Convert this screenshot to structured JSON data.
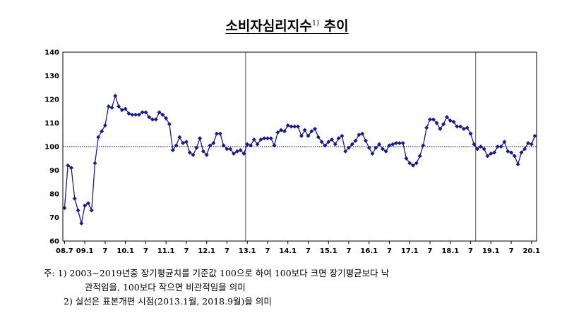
{
  "title": {
    "main": "소비자심리지수",
    "sup": "1)",
    "suffix": " 추이"
  },
  "chart_data": {
    "type": "line",
    "title": "소비자심리지수1) 추이",
    "xlabel": "",
    "ylabel": "",
    "ylim": [
      60,
      140
    ],
    "yticks": [
      60,
      70,
      80,
      90,
      100,
      110,
      120,
      130,
      140
    ],
    "reference_line": 100,
    "x_start": "2008.7",
    "series_color": "#1a1a8c",
    "x_tick_labels": [
      {
        "label": "08.7",
        "month": "2008.7"
      },
      {
        "label": "09.1",
        "month": "2009.1"
      },
      {
        "label": "7",
        "month": "2009.7"
      },
      {
        "label": "10.1",
        "month": "2010.1"
      },
      {
        "label": "7",
        "month": "2010.7"
      },
      {
        "label": "11.1",
        "month": "2011.1"
      },
      {
        "label": "7",
        "month": "2011.7"
      },
      {
        "label": "12.1",
        "month": "2012.1"
      },
      {
        "label": "7",
        "month": "2012.7"
      },
      {
        "label": "13.1",
        "month": "2013.1"
      },
      {
        "label": "7",
        "month": "2013.7"
      },
      {
        "label": "14.1",
        "month": "2014.1"
      },
      {
        "label": "7",
        "month": "2014.7"
      },
      {
        "label": "15.1",
        "month": "2015.1"
      },
      {
        "label": "7",
        "month": "2015.7"
      },
      {
        "label": "16.1",
        "month": "2016.1"
      },
      {
        "label": "7",
        "month": "2016.7"
      },
      {
        "label": "17.1",
        "month": "2017.1"
      },
      {
        "label": "7",
        "month": "2017.7"
      },
      {
        "label": "18.1",
        "month": "2018.1"
      },
      {
        "label": "7",
        "month": "2018.7"
      },
      {
        "label": "19.1",
        "month": "2019.1"
      },
      {
        "label": "7",
        "month": "2019.7"
      },
      {
        "label": "20.1",
        "month": "2020.1"
      }
    ],
    "breaks": [
      "2013.1",
      "2018.9"
    ],
    "values": [
      74,
      92,
      91,
      78,
      73,
      67.5,
      75,
      76,
      73,
      93,
      104,
      106.5,
      109,
      117,
      116.5,
      121.5,
      117,
      115.5,
      116,
      114,
      113.5,
      113.5,
      113.5,
      114.5,
      114.5,
      112.5,
      111.5,
      111.5,
      114.5,
      113.5,
      112,
      109.5,
      98.5,
      100.5,
      104,
      101.5,
      102,
      97.5,
      96.5,
      99.5,
      103.5,
      98,
      96.5,
      100.5,
      101.5,
      105.5,
      105.5,
      100.5,
      99,
      99,
      97,
      98,
      98.5,
      97,
      101,
      100.5,
      103,
      101,
      103,
      103.5,
      103.5,
      103.5,
      100.5,
      106,
      107,
      106.5,
      109,
      108.5,
      108.5,
      108.5,
      104.5,
      107,
      104.5,
      106.5,
      107.5,
      104,
      102,
      100.5,
      102,
      103,
      101,
      103.5,
      104.5,
      98,
      99.5,
      101,
      102.5,
      105,
      105.5,
      102.5,
      99.5,
      97,
      99.5,
      101,
      99,
      98,
      100.5,
      101,
      101.5,
      101.5,
      101.5,
      95,
      93,
      92,
      93,
      96,
      100.5,
      108,
      111.5,
      111.5,
      110,
      107.5,
      109.5,
      112.5,
      111,
      110.5,
      108.5,
      108.5,
      107.5,
      108,
      105.5,
      101,
      99,
      100,
      99,
      96,
      97,
      97.5,
      100,
      100,
      102,
      98,
      97.5,
      96,
      92.5,
      97.5,
      99,
      101.5,
      101,
      104.5
    ]
  },
  "notes": {
    "n1_prefix": "주:  1)",
    "n1_line1": "2003∼2019년중 장기평균치를 기준값 100으로 하여 100보다 크면 장기평균보다 낙",
    "n1_line2": "관적임을, 100보다 작으면 비관적임을 의미",
    "n2": "2) 실선은 표본개편 시점(2013.1월, 2018.9월)을 의미"
  }
}
